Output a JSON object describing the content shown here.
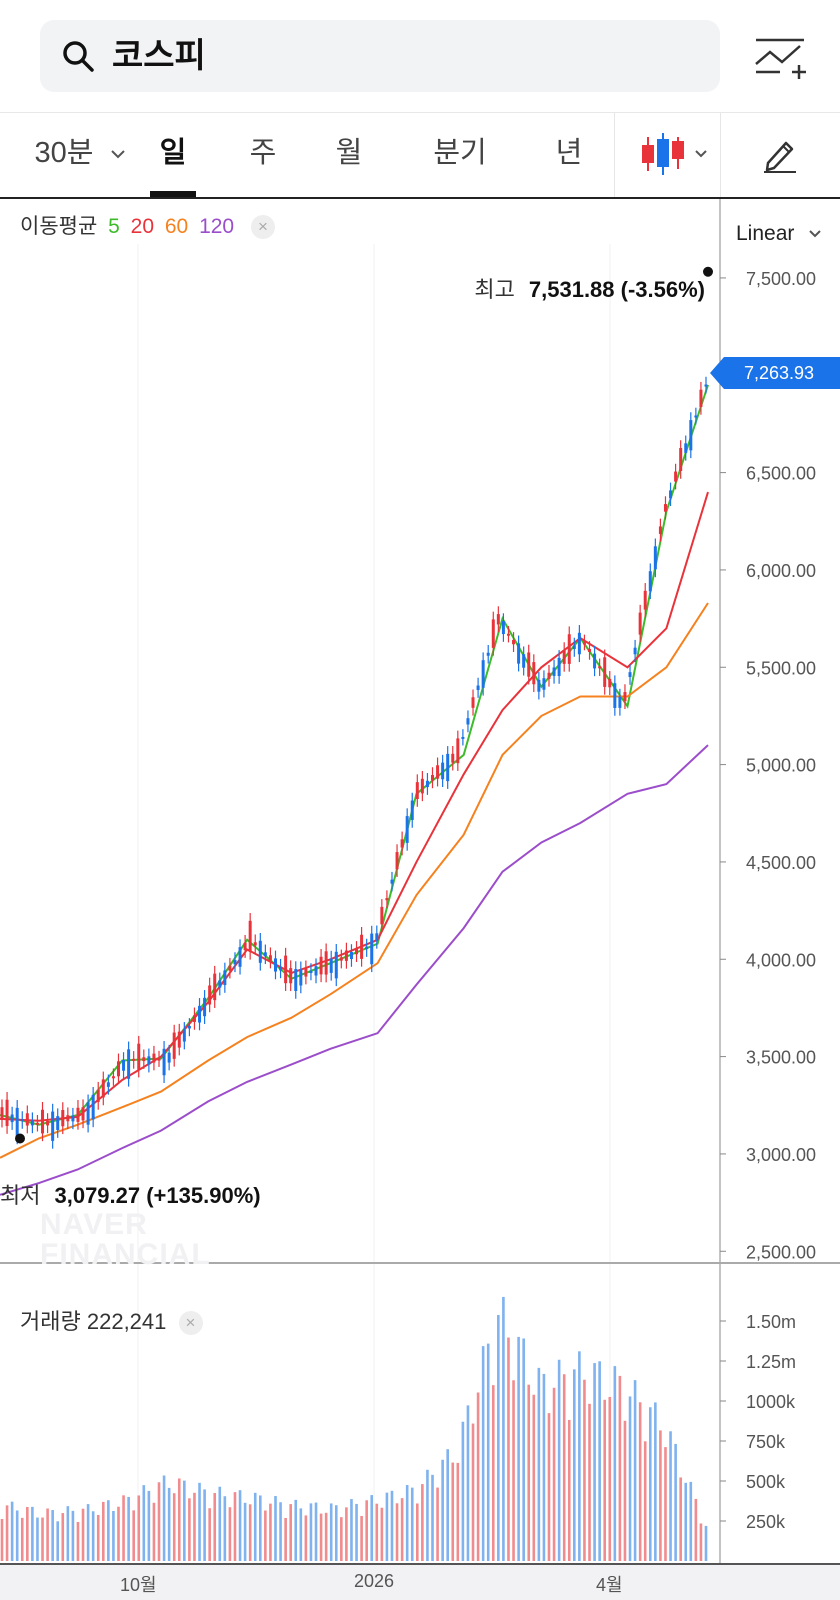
{
  "search": {
    "query": "코스피"
  },
  "tabs": {
    "minute_label": "30분",
    "items": [
      "일",
      "주",
      "월",
      "분기",
      "년"
    ],
    "active": "일"
  },
  "chart": {
    "ma_legend": {
      "label": "이동평균",
      "periods": [
        "5",
        "20",
        "60",
        "120"
      ],
      "colors": [
        "#3dbb2a",
        "#e8333b",
        "#f5821f",
        "#9b4dca"
      ]
    },
    "scale_mode": "Linear",
    "current_price": "7,263.93",
    "high": {
      "label": "최고",
      "value": "7,531.88 (-3.56%)"
    },
    "low": {
      "label": "최저",
      "value": "3,079.27 (+135.90%)"
    },
    "watermark": [
      "NAVER",
      "FINANCIAL"
    ],
    "volume_legend": {
      "label": "거래량",
      "value": "222,241"
    },
    "x_axis_labels": [
      "10월",
      "2026",
      "4월"
    ],
    "colors": {
      "up": "#e8333b",
      "down": "#1a73e8",
      "accent": "#1a73e8"
    }
  },
  "chart_data": [
    {
      "type": "line",
      "title": "",
      "y_axis_labels": [
        "7,500.00",
        "7,000.00",
        "6,500.00",
        "6,000.00",
        "5,500.00",
        "5,000.00",
        "4,500.00",
        "4,000.00",
        "3,500.00",
        "3,000.00",
        "2,500.00"
      ],
      "ylim": [
        2450,
        7700
      ],
      "x": [
        "2025-08-18",
        "2025-09-01",
        "2025-09-15",
        "2025-10-01",
        "2025-10-15",
        "2025-11-01",
        "2025-11-15",
        "2025-12-01",
        "2025-12-15",
        "2026-01-01",
        "2026-01-15",
        "2026-02-01",
        "2026-02-15",
        "2026-03-01",
        "2026-03-15",
        "2026-04-01",
        "2026-04-15",
        "2026-04-30"
      ],
      "series": [
        {
          "name": "5",
          "values": [
            3200,
            3150,
            3200,
            3480,
            3490,
            3800,
            4100,
            3900,
            3980,
            4080,
            4850,
            5050,
            5750,
            5400,
            5650,
            5300,
            6300,
            6950
          ]
        },
        {
          "name": "20",
          "values": [
            3180,
            3170,
            3190,
            3380,
            3500,
            3780,
            4050,
            3930,
            4000,
            4100,
            4500,
            4950,
            5280,
            5500,
            5650,
            5500,
            5700,
            6400
          ]
        },
        {
          "name": "60",
          "values": [
            2980,
            3080,
            3150,
            3240,
            3320,
            3480,
            3600,
            3700,
            3820,
            3980,
            4330,
            4640,
            5050,
            5250,
            5350,
            5350,
            5500,
            5830
          ]
        },
        {
          "name": "120",
          "values": [
            2790,
            2850,
            2920,
            3030,
            3120,
            3270,
            3370,
            3460,
            3540,
            3620,
            3870,
            4160,
            4450,
            4600,
            4700,
            4850,
            4900,
            5100
          ]
        }
      ]
    },
    {
      "type": "bar",
      "title": "",
      "y_axis_labels": [
        "1.50m",
        "1.25m",
        "1000k",
        "750k",
        "500k",
        "250k"
      ],
      "ylim": [
        0,
        1700000
      ],
      "x": [
        "2025-08-18",
        "2025-09-01",
        "2025-09-15",
        "2025-10-01",
        "2025-10-15",
        "2025-11-01",
        "2025-11-15",
        "2025-12-01",
        "2025-12-15",
        "2026-01-01",
        "2026-01-15",
        "2026-02-01",
        "2026-02-15",
        "2026-03-01",
        "2026-03-15",
        "2026-04-01",
        "2026-04-15",
        "2026-04-30"
      ],
      "series": [
        {
          "name": "거래량",
          "values": [
            350000,
            300000,
            320000,
            380000,
            500000,
            430000,
            400000,
            350000,
            330000,
            380000,
            450000,
            700000,
            1550000,
            1100000,
            1200000,
            1100000,
            850000,
            222241
          ]
        }
      ]
    }
  ]
}
